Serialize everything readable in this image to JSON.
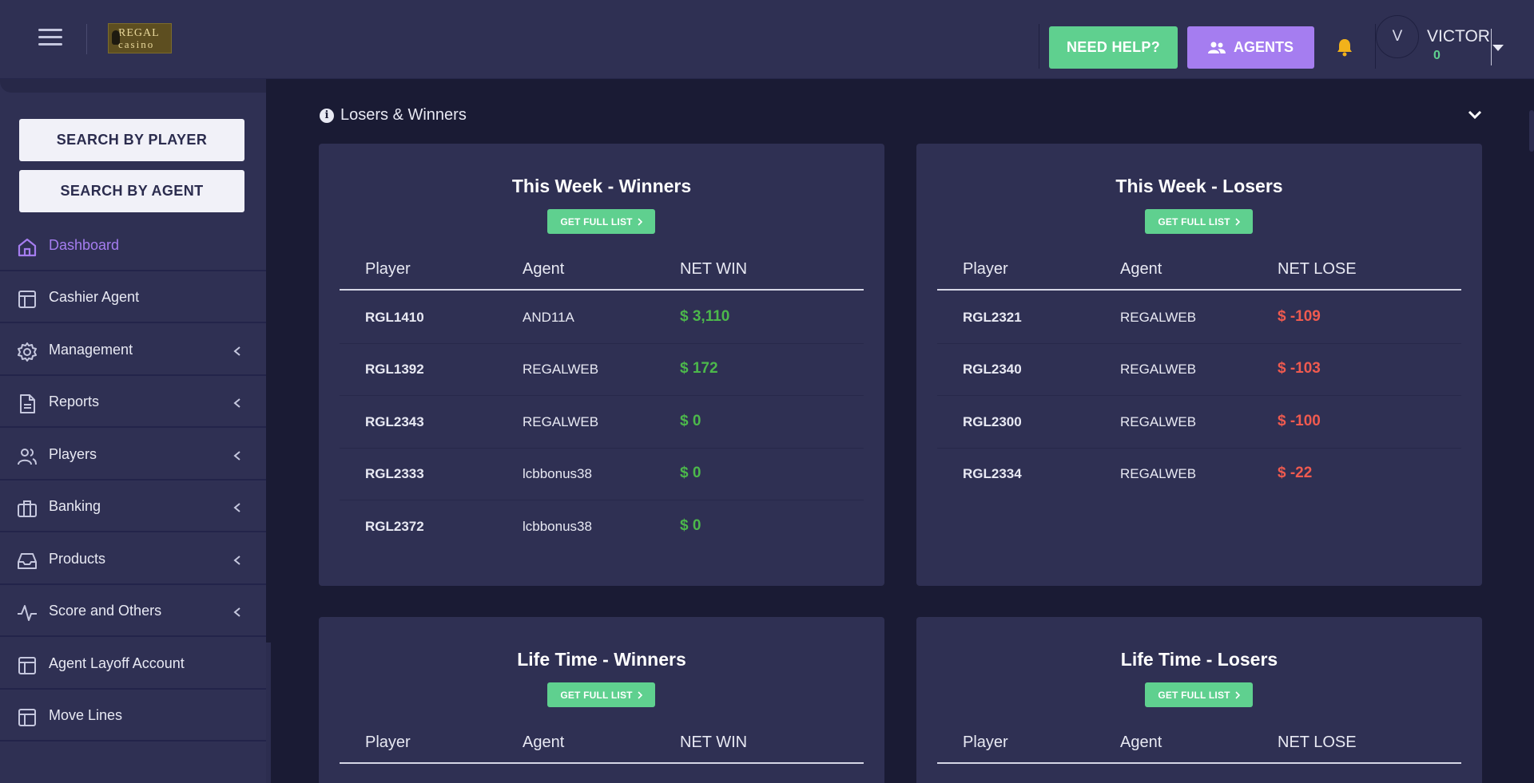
{
  "header": {
    "logo_line1": "REGAL",
    "logo_line2": "casino",
    "help_label": "NEED HELP?",
    "agents_label": "AGENTS",
    "user_initial": "V",
    "user_name": "VICTOR",
    "user_balance": "0"
  },
  "sidebar": {
    "search_player": "SEARCH BY PLAYER",
    "search_agent": "SEARCH BY AGENT",
    "items": [
      {
        "label": "Dashboard",
        "icon": "home-icon"
      },
      {
        "label": "Cashier Agent",
        "icon": "layout-icon"
      },
      {
        "label": "Management",
        "icon": "gear-icon"
      },
      {
        "label": "Reports",
        "icon": "document-icon"
      },
      {
        "label": "Players",
        "icon": "users-icon"
      },
      {
        "label": "Banking",
        "icon": "briefcase-icon"
      },
      {
        "label": "Products",
        "icon": "inbox-icon"
      },
      {
        "label": "Score and Others",
        "icon": "activity-icon"
      },
      {
        "label": "Agent Layoff Account",
        "icon": "layout-icon"
      },
      {
        "label": "Move Lines",
        "icon": "layout-icon"
      }
    ]
  },
  "section": {
    "title": "Losers & Winners"
  },
  "cards": {
    "week_winners": {
      "title": "This Week - Winners",
      "button": "GET FULL LIST",
      "columns": [
        "Player",
        "Agent",
        "NET WIN"
      ],
      "rows": [
        {
          "player": "RGL1410",
          "agent": "AND11A",
          "amount": "$ 3,110"
        },
        {
          "player": "RGL1392",
          "agent": "REGALWEB",
          "amount": "$ 172"
        },
        {
          "player": "RGL2343",
          "agent": "REGALWEB",
          "amount": "$ 0"
        },
        {
          "player": "RGL2333",
          "agent": "lcbbonus38",
          "amount": "$ 0"
        },
        {
          "player": "RGL2372",
          "agent": "lcbbonus38",
          "amount": "$ 0"
        }
      ]
    },
    "week_losers": {
      "title": "This Week - Losers",
      "button": "GET FULL LIST",
      "columns": [
        "Player",
        "Agent",
        "NET LOSE"
      ],
      "rows": [
        {
          "player": "RGL2321",
          "agent": "REGALWEB",
          "amount": "$ -109"
        },
        {
          "player": "RGL2340",
          "agent": "REGALWEB",
          "amount": "$ -103"
        },
        {
          "player": "RGL2300",
          "agent": "REGALWEB",
          "amount": "$ -100"
        },
        {
          "player": "RGL2334",
          "agent": "REGALWEB",
          "amount": "$ -22"
        }
      ]
    },
    "life_winners": {
      "title": "Life Time - Winners",
      "button": "GET FULL LIST",
      "columns": [
        "Player",
        "Agent",
        "NET WIN"
      ]
    },
    "life_losers": {
      "title": "Life Time - Losers",
      "button": "GET FULL LIST",
      "columns": [
        "Player",
        "Agent",
        "NET LOSE"
      ]
    }
  },
  "colors": {
    "accent_green": "#5fd08f",
    "accent_purple": "#a57df0",
    "win_green": "#4cb84b",
    "lose_red": "#ef5a4f"
  }
}
